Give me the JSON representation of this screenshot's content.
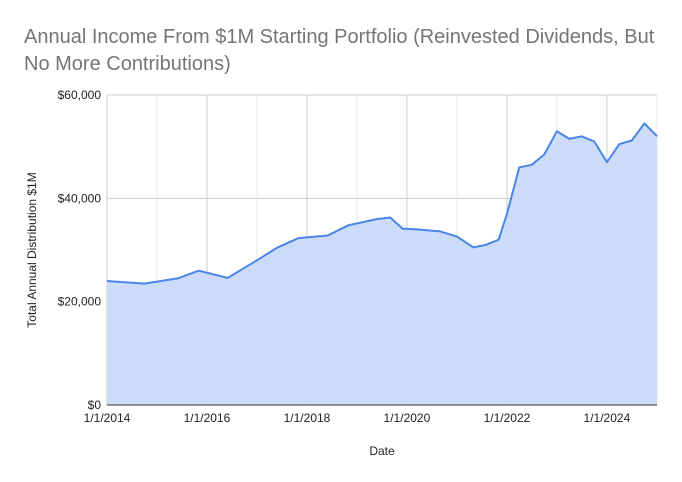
{
  "chart_data": {
    "type": "area",
    "title": "Annual Income From $1M Starting Portfolio (Reinvested Dividends, But No More Contributions)",
    "xlabel": "Date",
    "ylabel": "Total Annual Distribution $1M",
    "ylim": [
      0,
      60000
    ],
    "yticks": [
      0,
      20000,
      40000,
      60000
    ],
    "ytick_labels": [
      "$0",
      "$20,000",
      "$40,000",
      "$60,000"
    ],
    "xlim": [
      "2014-01-01",
      "2025-01-01"
    ],
    "xticks": [
      "2014-01-01",
      "2016-01-01",
      "2018-01-01",
      "2020-01-01",
      "2022-01-01",
      "2024-01-01"
    ],
    "xtick_labels": [
      "1/1/2014",
      "1/1/2016",
      "1/1/2018",
      "1/1/2020",
      "1/1/2022",
      "1/1/2024"
    ],
    "grid": true,
    "colors": {
      "line": "#4a86e8",
      "fill": "#c9daf8",
      "grid": "#cccccc",
      "axis": "#333333",
      "title": "#757575"
    },
    "series": [
      {
        "x": [
          "2014-01-01",
          "2014-10-01",
          "2015-06-01",
          "2015-11-01",
          "2016-06-01",
          "2017-01-01",
          "2017-06-01",
          "2017-11-01",
          "2018-06-01",
          "2018-11-01",
          "2019-06-01",
          "2019-09-01",
          "2019-12-01",
          "2020-03-01",
          "2020-09-01",
          "2021-01-01",
          "2021-05-01",
          "2021-08-01",
          "2021-11-01",
          "2022-01-01",
          "2022-04-01",
          "2022-07-01",
          "2022-10-01",
          "2023-01-01",
          "2023-04-01",
          "2023-07-01",
          "2023-10-01",
          "2024-01-01",
          "2024-04-01",
          "2024-07-01",
          "2024-10-01",
          "2025-01-01"
        ],
        "values": [
          24000,
          23500,
          24500,
          26000,
          24600,
          28000,
          30500,
          32300,
          32800,
          34800,
          36000,
          36300,
          34100,
          34000,
          33600,
          32600,
          30500,
          31000,
          32000,
          37000,
          46000,
          46500,
          48500,
          53000,
          51500,
          52000,
          51000,
          47000,
          50500,
          51200,
          54500,
          52000
        ]
      }
    ]
  }
}
